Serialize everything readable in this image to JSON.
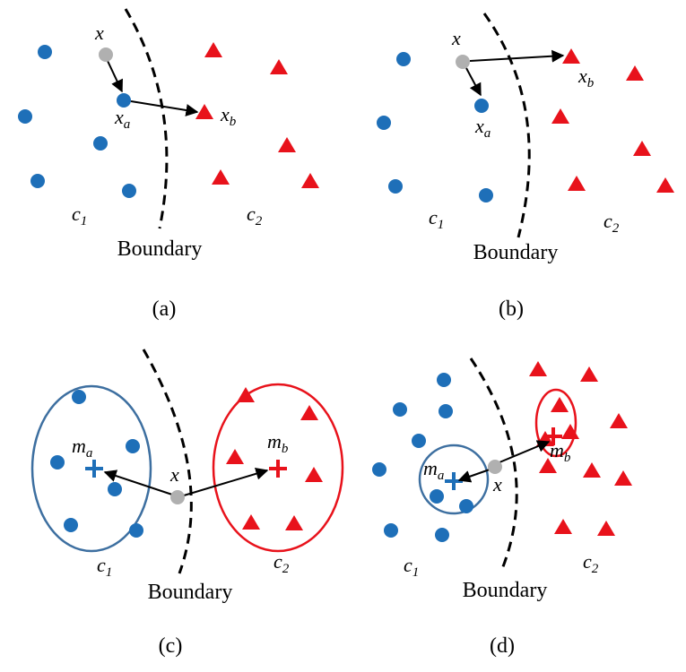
{
  "panels": [
    {
      "caption": "(a)",
      "x": {
        "text": "x"
      },
      "xa": {
        "text": "x",
        "sub": "a"
      },
      "xb": {
        "text": "x",
        "sub": "b"
      },
      "c1": {
        "text": "c",
        "sub": "1"
      },
      "c2": {
        "text": "c",
        "sub": "2"
      },
      "boundary": "Boundary"
    },
    {
      "caption": "(b)",
      "x": {
        "text": "x"
      },
      "xa": {
        "text": "x",
        "sub": "a"
      },
      "xb": {
        "text": "x",
        "sub": "b"
      },
      "c1": {
        "text": "c",
        "sub": "1"
      },
      "c2": {
        "text": "c",
        "sub": "2"
      },
      "boundary": "Boundary"
    },
    {
      "caption": "(c)",
      "x": {
        "text": "x"
      },
      "ma": {
        "text": "m",
        "sub": "a"
      },
      "mb": {
        "text": "m",
        "sub": "b"
      },
      "c1": {
        "text": "c",
        "sub": "1"
      },
      "c2": {
        "text": "c",
        "sub": "2"
      },
      "boundary": "Boundary"
    },
    {
      "caption": "(d)",
      "x": {
        "text": "x"
      },
      "ma": {
        "text": "m",
        "sub": "a"
      },
      "mb": {
        "text": "m",
        "sub": "b"
      },
      "c1": {
        "text": "c",
        "sub": "1"
      },
      "c2": {
        "text": "c",
        "sub": "2"
      },
      "boundary": "Boundary"
    }
  ]
}
